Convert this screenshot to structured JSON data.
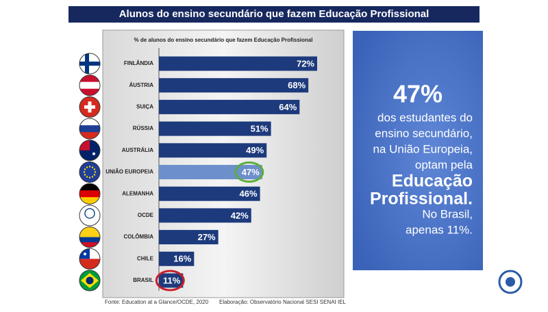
{
  "chart_data": {
    "type": "bar",
    "title": "Alunos do ensino secundário que fazem Educação Profissional",
    "subtitle": "% de alunos do ensino secundário que fazem Educação Profissional",
    "categories": [
      "FINLÂNDIA",
      "ÁUSTRIA",
      "SUIÇA",
      "RÚSSIA",
      "AUSTRÁLIA",
      "UNIÃO EUROPEIA",
      "ALEMANHA",
      "OCDE",
      "COLÔMBIA",
      "CHILE",
      "BRASIL"
    ],
    "values": [
      72,
      68,
      64,
      51,
      49,
      47,
      46,
      42,
      27,
      16,
      11
    ],
    "value_labels": [
      "72%",
      "68%",
      "64%",
      "51%",
      "49%",
      "47%",
      "46%",
      "42%",
      "27%",
      "16%",
      "11%"
    ],
    "bar_colors": [
      "#1d3a7c",
      "#1d3a7c",
      "#1d3a7c",
      "#1d3a7c",
      "#1d3a7c",
      "#6d8fcb",
      "#1d3a7c",
      "#1d3a7c",
      "#1d3a7c",
      "#1d3a7c",
      "#1d3a7c"
    ],
    "ring_colors": [
      null,
      null,
      null,
      null,
      null,
      "#5cae3c",
      null,
      null,
      null,
      null,
      "#c8202a"
    ]
  },
  "callout": {
    "headline": "47%",
    "lines": [
      "dos estudantes do",
      "ensino secundário,",
      "na União Europeia,",
      "optam pela"
    ],
    "emphasis": [
      "Educação",
      "Profissional."
    ],
    "footer": [
      "No Brasil,",
      "apenas 11%."
    ]
  },
  "footer": {
    "source": "Fonte: Education at a Glance/OCDE, 2020",
    "credit": "Elaboração: Observatório Nacional SESI SENAI IEL"
  }
}
